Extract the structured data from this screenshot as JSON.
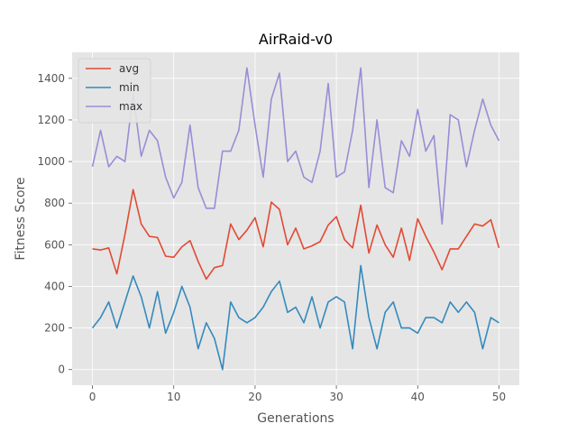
{
  "chart_data": {
    "type": "line",
    "title": "AirRaid-v0",
    "xlabel": "Generations",
    "ylabel": "Fitness Score",
    "xlim": [
      -2.5,
      52.5
    ],
    "ylim": [
      -75,
      1525
    ],
    "xticks": [
      0,
      10,
      20,
      30,
      40,
      50
    ],
    "yticks": [
      0,
      200,
      400,
      600,
      800,
      1000,
      1200,
      1400
    ],
    "grid": true,
    "legend": "top-left",
    "x": [
      0,
      1,
      2,
      3,
      4,
      5,
      6,
      7,
      8,
      9,
      10,
      11,
      12,
      13,
      14,
      15,
      16,
      17,
      18,
      19,
      20,
      21,
      22,
      23,
      24,
      25,
      26,
      27,
      28,
      29,
      30,
      31,
      32,
      33,
      34,
      35,
      36,
      37,
      38,
      39,
      40,
      41,
      42,
      43,
      44,
      45,
      46,
      47,
      48,
      49,
      50
    ],
    "series": [
      {
        "name": "avg",
        "color": "#E24A33",
        "values": [
          580,
          575,
          585,
          460,
          650,
          865,
          700,
          640,
          635,
          545,
          540,
          590,
          620,
          520,
          435,
          490,
          500,
          700,
          625,
          670,
          730,
          590,
          805,
          770,
          600,
          680,
          580,
          595,
          615,
          695,
          735,
          625,
          585,
          790,
          560,
          695,
          600,
          540,
          680,
          525,
          725,
          640,
          565,
          480,
          580,
          580,
          640,
          700,
          690,
          720,
          585
        ]
      },
      {
        "name": "min",
        "color": "#348ABD",
        "values": [
          200,
          250,
          325,
          200,
          325,
          450,
          350,
          200,
          375,
          175,
          275,
          400,
          300,
          100,
          225,
          150,
          0,
          325,
          250,
          225,
          250,
          300,
          375,
          425,
          275,
          300,
          225,
          350,
          200,
          325,
          350,
          325,
          100,
          500,
          250,
          100,
          275,
          325,
          200,
          200,
          175,
          250,
          250,
          225,
          325,
          275,
          325,
          275,
          100,
          250,
          225
        ]
      },
      {
        "name": "max",
        "color": "#988ED5",
        "values": [
          975,
          1150,
          975,
          1025,
          1000,
          1325,
          1025,
          1150,
          1100,
          925,
          825,
          900,
          1175,
          875,
          775,
          775,
          1050,
          1050,
          1150,
          1450,
          1175,
          925,
          1300,
          1425,
          1000,
          1050,
          925,
          900,
          1050,
          1375,
          925,
          950,
          1150,
          1450,
          875,
          1200,
          875,
          850,
          1100,
          1025,
          1250,
          1050,
          1125,
          700,
          1225,
          1200,
          975,
          1150,
          1300,
          1175,
          1100
        ]
      }
    ]
  }
}
